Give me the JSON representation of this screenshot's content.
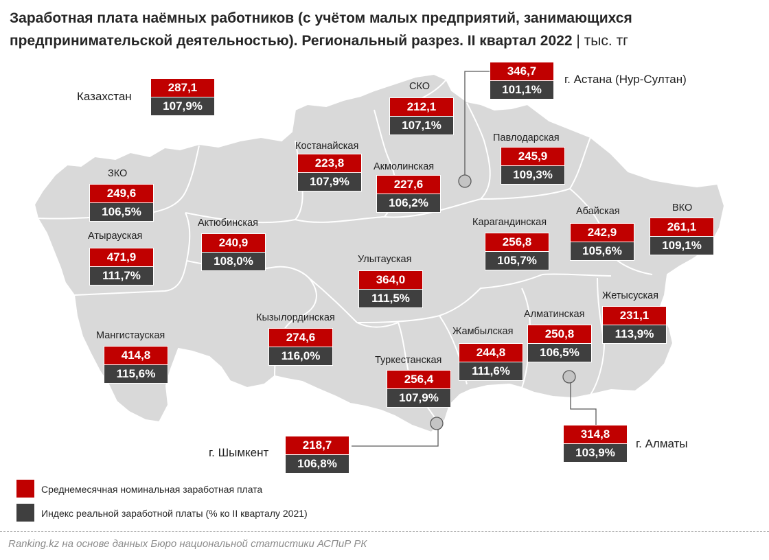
{
  "title": "Заработная плата наёмных работников (с учётом малых предприятий, занимающихся предпринимательской деятельностью). Региональный разрез. II квартал 2022",
  "title_separator": "|",
  "unit": "тыс. тг",
  "colors": {
    "wage": "#c00000",
    "index": "#3f3f3f",
    "map_fill": "#d9d9d9",
    "map_border": "#ffffff"
  },
  "kazakhstan": {
    "name": "Казахстан",
    "wage": "287,1",
    "index": "107,9%"
  },
  "regions": [
    {
      "name": "СКО",
      "wage": "212,1",
      "index": "107,1%"
    },
    {
      "name": "г. Астана (Нур-Султан)",
      "wage": "346,7",
      "index": "101,1%"
    },
    {
      "name": "Павлодарская",
      "wage": "245,9",
      "index": "109,3%"
    },
    {
      "name": "Костанайская",
      "wage": "223,8",
      "index": "107,9%"
    },
    {
      "name": "Акмолинская",
      "wage": "227,6",
      "index": "106,2%"
    },
    {
      "name": "ЗКО",
      "wage": "249,6",
      "index": "106,5%"
    },
    {
      "name": "Актюбинская",
      "wage": "240,9",
      "index": "108,0%"
    },
    {
      "name": "Карагандинская",
      "wage": "256,8",
      "index": "105,7%"
    },
    {
      "name": "Абайская",
      "wage": "242,9",
      "index": "105,6%"
    },
    {
      "name": "ВКО",
      "wage": "261,1",
      "index": "109,1%"
    },
    {
      "name": "Атырауская",
      "wage": "471,9",
      "index": "111,7%"
    },
    {
      "name": "Улытауская",
      "wage": "364,0",
      "index": "111,5%"
    },
    {
      "name": "Жетысуская",
      "wage": "231,1",
      "index": "113,9%"
    },
    {
      "name": "Кызылординская",
      "wage": "274,6",
      "index": "116,0%"
    },
    {
      "name": "Алматинская",
      "wage": "250,8",
      "index": "106,5%"
    },
    {
      "name": "Мангистауская",
      "wage": "414,8",
      "index": "115,6%"
    },
    {
      "name": "Жамбылская",
      "wage": "244,8",
      "index": "111,6%"
    },
    {
      "name": "Туркестанская",
      "wage": "256,4",
      "index": "107,9%"
    },
    {
      "name": "г. Шымкент",
      "wage": "218,7",
      "index": "106,8%"
    },
    {
      "name": "г. Алматы",
      "wage": "314,8",
      "index": "103,9%"
    }
  ],
  "legend": [
    {
      "label": "Среднемесячная номинальная заработная плата"
    },
    {
      "label": "Индекс реальной заработной платы (% ко II кварталу 2021)"
    }
  ],
  "source": "Ranking.kz на основе данных Бюро национальной статистики АСПиР РК"
}
